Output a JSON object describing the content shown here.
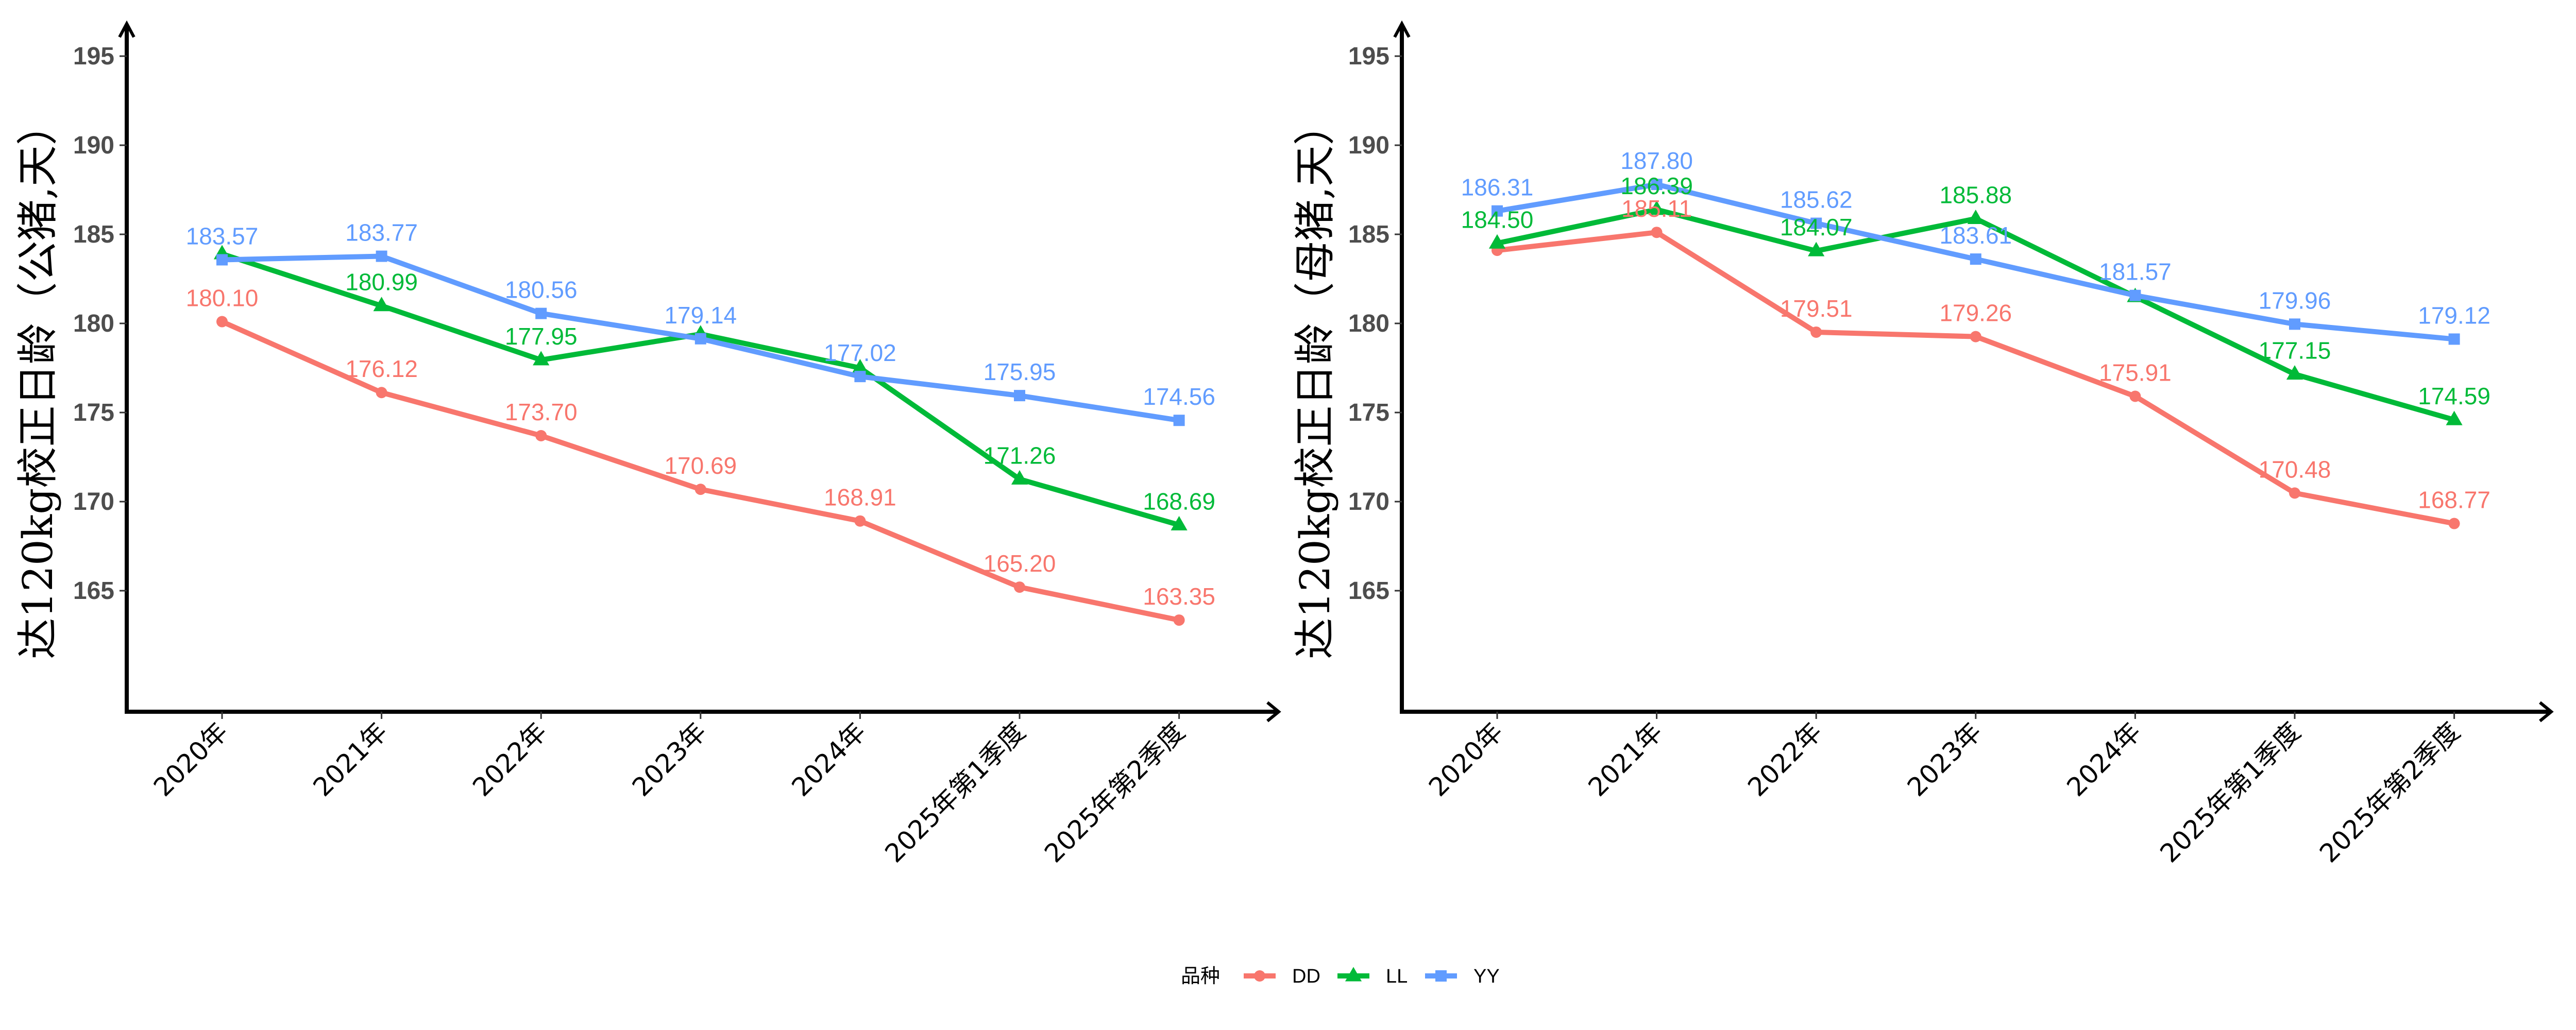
{
  "chart_data": {
    "type": "line",
    "categories": [
      "2020年",
      "2021年",
      "2022年",
      "2023年",
      "2024年",
      "2025年第1季度",
      "2025年第2季度"
    ],
    "legend": {
      "title": "品种",
      "placement": "bottom",
      "entries": [
        {
          "name": "DD",
          "color": "#F8766D",
          "shape": "circle"
        },
        {
          "name": "LL",
          "color": "#00BA38",
          "shape": "triangle"
        },
        {
          "name": "YY",
          "color": "#619CFF",
          "shape": "square"
        }
      ]
    },
    "panels": [
      {
        "id": "boar",
        "ylabel": "达120kg校正日龄（公猪,天）",
        "xlabel": "",
        "ylim": [
          158.2,
          196.8
        ],
        "yticks": [
          165,
          170,
          175,
          180,
          185,
          190,
          195
        ],
        "grid": false,
        "series": [
          {
            "name": "DD",
            "values": [
              180.1,
              176.12,
              173.7,
              170.69,
              168.91,
              165.2,
              163.35
            ],
            "labels": [
              "180.10",
              "176.12",
              "173.70",
              "170.69",
              "168.91",
              "165.20",
              "163.35"
            ]
          },
          {
            "name": "LL",
            "values": [
              183.9,
              180.99,
              177.95,
              179.4,
              177.5,
              171.26,
              168.69
            ],
            "labels": [
              null,
              "180.99",
              "177.95",
              null,
              null,
              "171.26",
              "168.69"
            ]
          },
          {
            "name": "YY",
            "values": [
              183.57,
              183.77,
              180.56,
              179.14,
              177.02,
              175.95,
              174.56
            ],
            "labels": [
              "183.57",
              "183.77",
              "180.56",
              "179.14",
              "177.02",
              "175.95",
              "174.56"
            ]
          }
        ]
      },
      {
        "id": "sow",
        "ylabel": "达120kg校正日龄（母猪,天）",
        "xlabel": "",
        "ylim": [
          158.2,
          196.8
        ],
        "yticks": [
          165,
          170,
          175,
          180,
          185,
          190,
          195
        ],
        "grid": false,
        "series": [
          {
            "name": "DD",
            "values": [
              184.1,
              185.11,
              179.51,
              179.26,
              175.91,
              170.48,
              168.77
            ],
            "labels": [
              null,
              "185.11",
              "179.51",
              "179.26",
              "175.91",
              "170.48",
              "168.77"
            ]
          },
          {
            "name": "LL",
            "values": [
              184.5,
              186.39,
              184.07,
              185.88,
              181.5,
              177.15,
              174.59
            ],
            "labels": [
              "184.50",
              "186.39",
              "184.07",
              "185.88",
              null,
              "177.15",
              "174.59"
            ]
          },
          {
            "name": "YY",
            "values": [
              186.31,
              187.8,
              185.62,
              183.61,
              181.57,
              179.96,
              179.12
            ],
            "labels": [
              "186.31",
              "187.80",
              "185.62",
              "183.61",
              "181.57",
              "179.96",
              "179.12"
            ]
          }
        ]
      }
    ]
  }
}
